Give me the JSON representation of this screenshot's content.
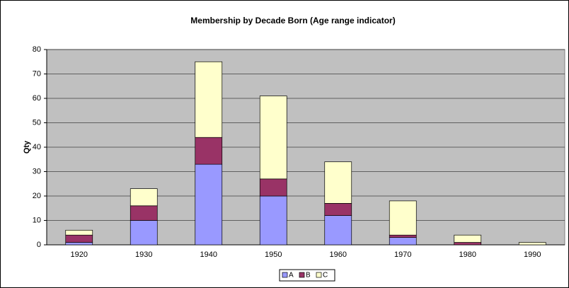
{
  "chart_data": {
    "type": "stacked_bar",
    "title": "Membership by Decade Born (Age range indicator)",
    "y_label": "Qty",
    "categories": [
      "1920",
      "1930",
      "1940",
      "1950",
      "1960",
      "1970",
      "1980",
      "1990"
    ],
    "series": [
      {
        "name": "A",
        "color": "#9999ff",
        "values": [
          1,
          10,
          33,
          20,
          12,
          3,
          0,
          0
        ]
      },
      {
        "name": "B",
        "color": "#993366",
        "values": [
          3,
          6,
          11,
          7,
          5,
          1,
          1,
          0
        ]
      },
      {
        "name": "C",
        "color": "#ffffcc",
        "values": [
          2,
          7,
          31,
          34,
          17,
          14,
          3,
          1
        ]
      }
    ],
    "ylim": [
      0,
      80
    ],
    "yticks": [
      0,
      10,
      20,
      30,
      40,
      50,
      60,
      70,
      80
    ],
    "grid": true,
    "legend": "bottom"
  }
}
